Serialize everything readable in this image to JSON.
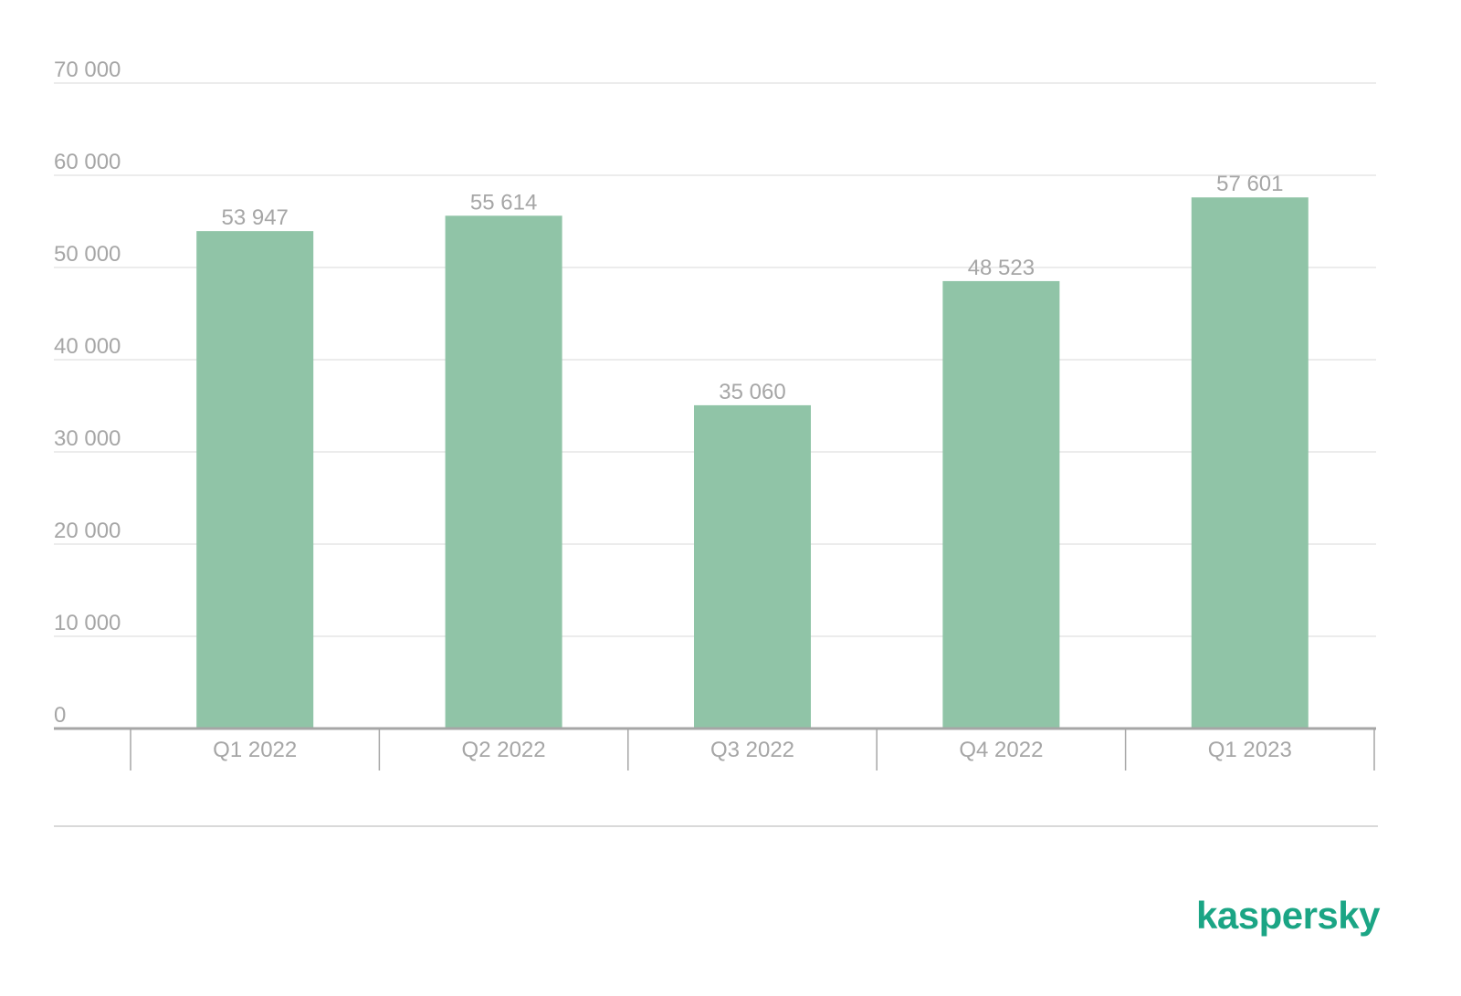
{
  "colors": {
    "bar": "#90c4a7",
    "text": "#a6a6a6",
    "grid": "#e6e6e6",
    "axis": "#a6a6a6",
    "divider": "#d9d9d9",
    "brand": "#1ba585"
  },
  "brand": {
    "text": "kaspersky"
  },
  "chart_data": {
    "type": "bar",
    "categories": [
      "Q1 2022",
      "Q2 2022",
      "Q3 2022",
      "Q4 2022",
      "Q1 2023"
    ],
    "values": [
      53947,
      55614,
      35060,
      48523,
      57601
    ],
    "value_labels": [
      "53 947",
      "55 614",
      "35 060",
      "48 523",
      "57 601"
    ],
    "y_ticks": [
      0,
      10000,
      20000,
      30000,
      40000,
      50000,
      60000,
      70000
    ],
    "y_tick_labels": [
      "0",
      "10 000",
      "20 000",
      "30 000",
      "40 000",
      "50 000",
      "60 000",
      "70 000"
    ],
    "ylim": [
      0,
      70000
    ],
    "title": "",
    "xlabel": "",
    "ylabel": "",
    "grid": true,
    "legend": "none"
  }
}
